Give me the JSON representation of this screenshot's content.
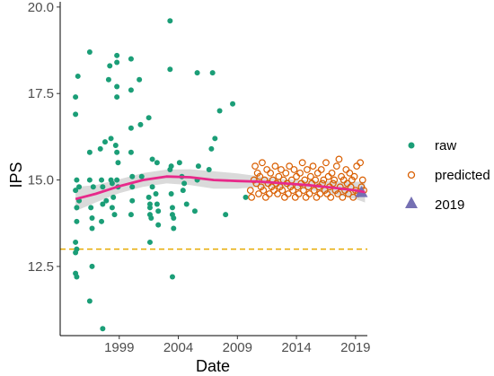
{
  "chart_data": {
    "type": "scatter",
    "xlabel": "Date",
    "ylabel": "IPS",
    "xlim": [
      1994.0,
      2020.0
    ],
    "ylim": [
      10.5,
      20.1
    ],
    "x_ticks": [
      1999,
      2004,
      2009,
      2014,
      2019
    ],
    "x_tick_labels": [
      "1999",
      "2004",
      "2009",
      "2014",
      "2019"
    ],
    "y_ticks": [
      12.5,
      15.0,
      17.5,
      20.0
    ],
    "y_tick_labels": [
      "12.5",
      "15.0",
      "17.5",
      "20.0"
    ],
    "grid": false,
    "legend": "right",
    "reference_line": {
      "y": 13.0,
      "style": "dashed",
      "color": "#E6AB02"
    },
    "series": [
      {
        "name": "raw",
        "marker": "filled-circle",
        "color": "#1B9E77",
        "points": [
          [
            1995.3,
            17.4
          ],
          [
            1995.3,
            16.9
          ],
          [
            1995.4,
            15.0
          ],
          [
            1995.3,
            14.7
          ],
          [
            1995.4,
            14.2
          ],
          [
            1995.4,
            13.8
          ],
          [
            1995.3,
            13.2
          ],
          [
            1995.4,
            13.0
          ],
          [
            1995.3,
            12.9
          ],
          [
            1995.3,
            12.3
          ],
          [
            1995.4,
            12.2
          ],
          [
            1995.5,
            18.0
          ],
          [
            1995.6,
            14.8
          ],
          [
            1995.6,
            14.4
          ],
          [
            1996.5,
            18.7
          ],
          [
            1996.5,
            15.8
          ],
          [
            1996.5,
            15.0
          ],
          [
            1996.6,
            14.2
          ],
          [
            1996.7,
            13.9
          ],
          [
            1996.7,
            13.6
          ],
          [
            1996.7,
            12.5
          ],
          [
            1996.5,
            11.5
          ],
          [
            1996.8,
            14.8
          ],
          [
            1997.4,
            15.9
          ],
          [
            1997.5,
            15.0
          ],
          [
            1997.6,
            14.8
          ],
          [
            1997.6,
            14.3
          ],
          [
            1997.5,
            13.8
          ],
          [
            1997.6,
            10.7
          ],
          [
            1997.8,
            16.1
          ],
          [
            1997.9,
            14.4
          ],
          [
            1998.1,
            17.9
          ],
          [
            1998.2,
            18.3
          ],
          [
            1998.3,
            16.2
          ],
          [
            1998.3,
            15.0
          ],
          [
            1998.4,
            14.9
          ],
          [
            1998.5,
            14.5
          ],
          [
            1998.4,
            14.2
          ],
          [
            1998.6,
            14.0
          ],
          [
            1998.8,
            18.6
          ],
          [
            1998.8,
            18.4
          ],
          [
            1998.8,
            17.7
          ],
          [
            1998.8,
            17.4
          ],
          [
            1998.7,
            16.0
          ],
          [
            1998.8,
            15.8
          ],
          [
            1998.9,
            15.5
          ],
          [
            1998.8,
            15.0
          ],
          [
            1998.9,
            14.8
          ],
          [
            2000.0,
            18.5
          ],
          [
            2000.0,
            17.6
          ],
          [
            2000.0,
            16.5
          ],
          [
            2000.0,
            15.8
          ],
          [
            2000.1,
            15.1
          ],
          [
            2000.1,
            14.8
          ],
          [
            2000.1,
            14.4
          ],
          [
            2000.0,
            14.0
          ],
          [
            2000.7,
            17.9
          ],
          [
            2000.8,
            16.6
          ],
          [
            2000.9,
            15.1
          ],
          [
            2001.5,
            16.8
          ],
          [
            2001.5,
            14.5
          ],
          [
            2001.6,
            14.3
          ],
          [
            2001.6,
            14.2
          ],
          [
            2001.6,
            14.0
          ],
          [
            2001.7,
            13.9
          ],
          [
            2001.6,
            13.2
          ],
          [
            2001.8,
            14.8
          ],
          [
            2001.8,
            15.6
          ],
          [
            2002.1,
            14.6
          ],
          [
            2002.2,
            14.3
          ],
          [
            2002.3,
            13.7
          ],
          [
            2002.3,
            14.1
          ],
          [
            2002.2,
            15.5
          ],
          [
            2003.3,
            19.6
          ],
          [
            2003.3,
            18.2
          ],
          [
            2003.4,
            15.4
          ],
          [
            2003.3,
            15.3
          ],
          [
            2003.4,
            14.6
          ],
          [
            2003.5,
            14.2
          ],
          [
            2003.5,
            14.0
          ],
          [
            2003.6,
            13.9
          ],
          [
            2003.6,
            13.6
          ],
          [
            2003.5,
            12.2
          ],
          [
            2004.1,
            15.5
          ],
          [
            2004.3,
            15.1
          ],
          [
            2004.5,
            14.9
          ],
          [
            2004.4,
            14.7
          ],
          [
            2004.7,
            14.3
          ],
          [
            2005.4,
            14.1
          ],
          [
            2005.6,
            15.0
          ],
          [
            2005.7,
            15.4
          ],
          [
            2005.6,
            18.1
          ],
          [
            2006.6,
            15.3
          ],
          [
            2006.8,
            15.9
          ],
          [
            2006.9,
            18.1
          ],
          [
            2007.1,
            16.2
          ],
          [
            2007.5,
            17.0
          ],
          [
            2008.0,
            14.0
          ],
          [
            2008.6,
            17.2
          ],
          [
            2009.7,
            14.5
          ]
        ]
      },
      {
        "name": "predicted",
        "marker": "open-circle",
        "color": "#D95F02",
        "points": [
          [
            2010.1,
            14.7
          ],
          [
            2010.2,
            14.5
          ],
          [
            2010.4,
            15.0
          ],
          [
            2010.5,
            15.4
          ],
          [
            2010.6,
            14.9
          ],
          [
            2010.7,
            15.2
          ],
          [
            2010.8,
            14.6
          ],
          [
            2010.9,
            15.1
          ],
          [
            2011.0,
            14.8
          ],
          [
            2011.1,
            15.5
          ],
          [
            2011.2,
            14.7
          ],
          [
            2011.3,
            15.0
          ],
          [
            2011.4,
            14.5
          ],
          [
            2011.5,
            15.3
          ],
          [
            2011.6,
            14.9
          ],
          [
            2011.7,
            14.6
          ],
          [
            2011.8,
            15.2
          ],
          [
            2011.9,
            14.8
          ],
          [
            2012.0,
            15.0
          ],
          [
            2012.1,
            14.7
          ],
          [
            2012.2,
            15.4
          ],
          [
            2012.3,
            14.9
          ],
          [
            2012.4,
            14.6
          ],
          [
            2012.5,
            15.1
          ],
          [
            2012.6,
            14.8
          ],
          [
            2012.7,
            15.3
          ],
          [
            2012.8,
            14.7
          ],
          [
            2012.9,
            15.0
          ],
          [
            2013.0,
            14.5
          ],
          [
            2013.1,
            15.2
          ],
          [
            2013.2,
            14.9
          ],
          [
            2013.3,
            14.6
          ],
          [
            2013.4,
            15.4
          ],
          [
            2013.5,
            14.8
          ],
          [
            2013.6,
            15.0
          ],
          [
            2013.7,
            14.7
          ],
          [
            2013.8,
            15.3
          ],
          [
            2013.9,
            14.5
          ],
          [
            2014.0,
            15.1
          ],
          [
            2014.1,
            14.8
          ],
          [
            2014.2,
            14.6
          ],
          [
            2014.3,
            15.2
          ],
          [
            2014.4,
            14.9
          ],
          [
            2014.5,
            15.5
          ],
          [
            2014.6,
            14.7
          ],
          [
            2014.7,
            15.0
          ],
          [
            2014.8,
            14.5
          ],
          [
            2014.9,
            15.3
          ],
          [
            2015.0,
            14.8
          ],
          [
            2015.1,
            14.6
          ],
          [
            2015.2,
            15.1
          ],
          [
            2015.3,
            14.9
          ],
          [
            2015.4,
            15.4
          ],
          [
            2015.5,
            14.7
          ],
          [
            2015.6,
            15.0
          ],
          [
            2015.7,
            14.5
          ],
          [
            2015.8,
            15.2
          ],
          [
            2015.9,
            14.8
          ],
          [
            2016.0,
            14.6
          ],
          [
            2016.1,
            15.3
          ],
          [
            2016.2,
            14.9
          ],
          [
            2016.3,
            15.0
          ],
          [
            2016.4,
            14.7
          ],
          [
            2016.5,
            15.5
          ],
          [
            2016.6,
            14.6
          ],
          [
            2016.7,
            15.1
          ],
          [
            2016.8,
            14.8
          ],
          [
            2016.9,
            14.5
          ],
          [
            2017.0,
            15.2
          ],
          [
            2017.1,
            14.9
          ],
          [
            2017.2,
            15.0
          ],
          [
            2017.3,
            14.7
          ],
          [
            2017.4,
            15.4
          ],
          [
            2017.5,
            14.6
          ],
          [
            2017.6,
            15.6
          ],
          [
            2017.7,
            14.8
          ],
          [
            2017.8,
            15.1
          ],
          [
            2017.9,
            14.5
          ],
          [
            2018.0,
            15.0
          ],
          [
            2018.1,
            14.7
          ],
          [
            2018.2,
            15.3
          ],
          [
            2018.3,
            14.9
          ],
          [
            2018.4,
            14.6
          ],
          [
            2018.5,
            15.2
          ],
          [
            2018.6,
            14.8
          ],
          [
            2018.7,
            15.0
          ],
          [
            2018.8,
            14.5
          ],
          [
            2018.9,
            15.1
          ],
          [
            2019.0,
            14.7
          ],
          [
            2019.1,
            15.4
          ],
          [
            2019.2,
            14.6
          ],
          [
            2019.4,
            15.5
          ],
          [
            2019.5,
            14.8
          ],
          [
            2019.6,
            15.0
          ],
          [
            2019.7,
            14.7
          ]
        ]
      },
      {
        "name": "2019",
        "marker": "filled-triangle",
        "color": "#7570B3",
        "points": [
          [
            2019.5,
            14.65
          ]
        ]
      }
    ],
    "smooth_fit": {
      "color": "#E7298A",
      "band_color": "#D3D3D3",
      "points": [
        [
          1995.3,
          14.45,
          14.1,
          14.8
        ],
        [
          1997.0,
          14.6,
          14.35,
          14.85
        ],
        [
          1999.0,
          14.82,
          14.62,
          15.02
        ],
        [
          2001.0,
          15.0,
          14.8,
          15.2
        ],
        [
          2003.0,
          15.1,
          14.9,
          15.3
        ],
        [
          2005.0,
          15.08,
          14.85,
          15.31
        ],
        [
          2007.0,
          15.0,
          14.75,
          15.25
        ],
        [
          2009.0,
          14.97,
          14.75,
          15.19
        ],
        [
          2011.0,
          14.95,
          14.8,
          15.1
        ],
        [
          2013.0,
          14.9,
          14.78,
          15.02
        ],
        [
          2015.0,
          14.85,
          14.72,
          14.98
        ],
        [
          2017.0,
          14.78,
          14.6,
          14.96
        ],
        [
          2019.0,
          14.7,
          14.45,
          14.95
        ],
        [
          2019.8,
          14.65,
          14.35,
          14.95
        ]
      ]
    }
  }
}
